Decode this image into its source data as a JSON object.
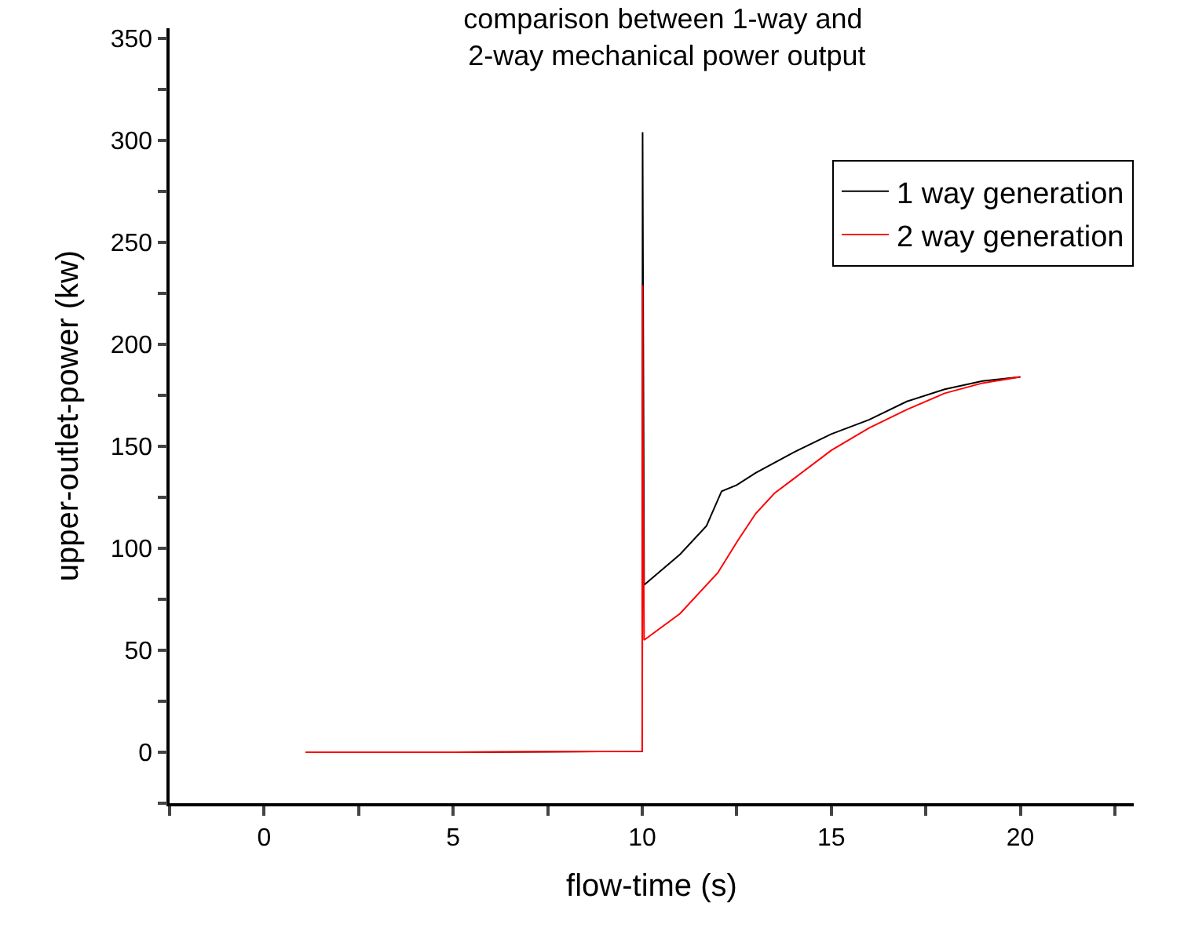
{
  "chart_data": {
    "type": "line",
    "title": "comparison between 1-way and\n 2-way mechanical power output",
    "xlabel": "flow-time (s)",
    "ylabel": "upper-outlet-power (kw)",
    "xlim": [
      -2.5,
      23
    ],
    "ylim": [
      -25,
      355
    ],
    "xticks": [
      {
        "value": -2.5,
        "label": null
      },
      0,
      {
        "value": 2.5,
        "label": null
      },
      5,
      {
        "value": 7.5,
        "label": null
      },
      10,
      {
        "value": 12.5,
        "label": null
      },
      15,
      {
        "value": 17.5,
        "label": null
      },
      20,
      {
        "value": 22.5,
        "label": null
      }
    ],
    "yticks": [
      {
        "value": -25,
        "label": null
      },
      0,
      {
        "value": 25,
        "label": null
      },
      50,
      {
        "value": 75,
        "label": null
      },
      100,
      {
        "value": 125,
        "label": null
      },
      150,
      {
        "value": 175,
        "label": null
      },
      200,
      {
        "value": 225,
        "label": null
      },
      250,
      {
        "value": 275,
        "label": null
      },
      300,
      {
        "value": 325,
        "label": null
      },
      350
    ],
    "legend": "top right",
    "marker": "none",
    "line_style": "solid",
    "series": [
      {
        "name": "1 way generation",
        "color": "#000000",
        "x": [
          1.1,
          5,
          10,
          10.01,
          10.02,
          10.05,
          11,
          11.7,
          12.1,
          12.5,
          13,
          14,
          15,
          16,
          17,
          18,
          19,
          20
        ],
        "values": [
          0,
          0,
          0.5,
          304,
          245,
          82,
          97,
          111,
          128,
          131,
          137,
          147,
          156,
          163,
          172,
          178,
          182,
          184
        ]
      },
      {
        "name": "2 way generation",
        "color": "#ff0000",
        "x": [
          1.1,
          5,
          10,
          10.01,
          10.02,
          10.05,
          11,
          12,
          12.5,
          13,
          13.5,
          14,
          15,
          16,
          17,
          18,
          19,
          20
        ],
        "values": [
          0,
          0,
          0.5,
          229,
          150,
          55,
          68,
          88,
          103,
          117,
          127,
          134,
          148,
          159,
          168,
          176,
          181,
          184
        ]
      }
    ]
  }
}
